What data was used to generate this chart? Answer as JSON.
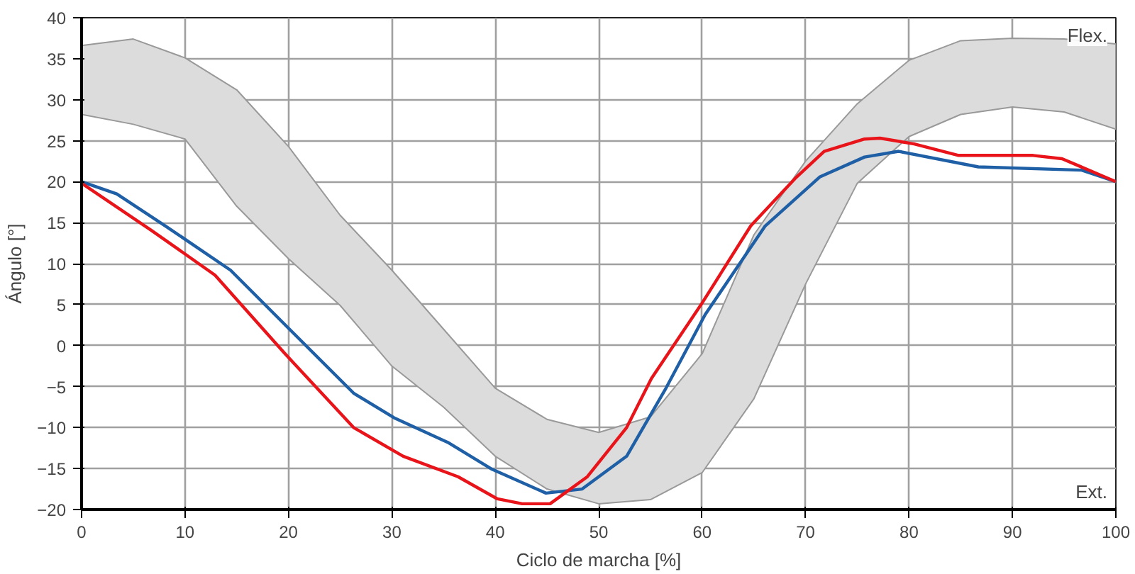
{
  "chart_data": {
    "type": "line",
    "xlabel": "Ciclo de marcha [%]",
    "ylabel": "Ángulo [°]",
    "xlim": [
      0,
      100
    ],
    "ylim": [
      -20,
      40
    ],
    "xticks": [
      0,
      10,
      20,
      30,
      40,
      50,
      60,
      70,
      80,
      90,
      100
    ],
    "yticks": [
      -20,
      -15,
      -10,
      -5,
      0,
      5,
      10,
      15,
      20,
      25,
      30,
      35,
      40
    ],
    "grid": true,
    "annotations": [
      "Flex.",
      "Ext."
    ],
    "series": [
      {
        "color": "#dcdcdc",
        "values": [
          null,
          null,
          null,
          null,
          null,
          null,
          null,
          null,
          null,
          null,
          null,
          null,
          null,
          null,
          null,
          null,
          null,
          null,
          null,
          null,
          null
        ],
        "x": [
          0,
          5,
          10,
          15,
          20,
          25,
          30,
          35,
          40,
          45,
          50,
          55,
          60,
          65,
          70,
          75,
          80,
          85,
          90,
          95,
          100
        ],
        "lower": [
          28.2,
          27.0,
          25.2,
          17.0,
          10.6,
          4.9,
          -2.5,
          -7.5,
          -13.5,
          -17.5,
          -19.3,
          -18.8,
          -15.5,
          -6.5,
          7.5,
          19.8,
          25.5,
          28.2,
          29.1,
          28.5,
          26.4
        ],
        "upper": [
          36.6,
          37.4,
          35.1,
          31.2,
          24.3,
          15.9,
          9.2,
          2.0,
          -5.2,
          -9.0,
          -10.6,
          -8.7,
          -1.0,
          13.5,
          22.5,
          29.5,
          34.8,
          37.2,
          37.5,
          37.4,
          36.8
        ]
      },
      {
        "color": "#1f5fa5",
        "x": [
          0,
          3.4,
          8.1,
          14.4,
          20.1,
          26.3,
          30.2,
          35.4,
          39.7,
          44.9,
          48.4,
          52.7,
          56.5,
          60.3,
          66.1,
          71.4,
          75.7,
          79,
          86.7,
          96.7,
          100
        ],
        "values": [
          20,
          18.5,
          14.6,
          9.2,
          2.0,
          -5.8,
          -8.8,
          -11.8,
          -15.1,
          -18.0,
          -17.5,
          -13.5,
          -5.2,
          3.8,
          14.6,
          20.6,
          23.0,
          23.7,
          21.8,
          21.4,
          20
        ]
      },
      {
        "color": "#e8141a",
        "x": [
          0,
          6.7,
          12.9,
          19.6,
          26.3,
          31.1,
          36.4,
          40.2,
          42.6,
          45.3,
          48.9,
          52.7,
          55.1,
          59.9,
          64.7,
          69,
          71.8,
          75.7,
          77.2,
          80.5,
          84.8,
          92,
          94.8,
          100
        ],
        "values": [
          19.8,
          14.1,
          8.6,
          -0.9,
          -10,
          -13.5,
          -16,
          -18.7,
          -19.3,
          -19.3,
          -16,
          -10,
          -4.0,
          5.0,
          14.6,
          20.4,
          23.7,
          25.2,
          25.3,
          24.6,
          23.2,
          23.2,
          22.8,
          20
        ]
      }
    ]
  }
}
